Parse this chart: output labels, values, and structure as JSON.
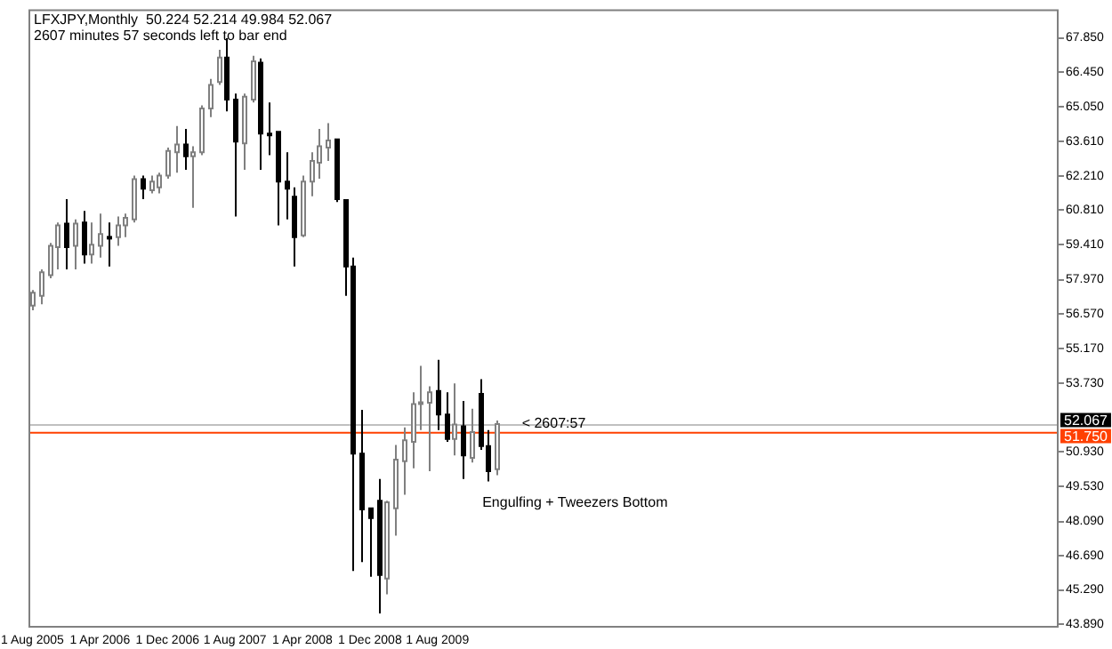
{
  "chart_data": {
    "type": "candlestick",
    "title": "LFXJPY,Monthly  50.224 52.214 49.984 52.067",
    "subtitle": "2607 minutes 57 seconds left to bar end",
    "x": [
      "2005-08",
      "2005-09",
      "2005-10",
      "2005-11",
      "2005-12",
      "2006-01",
      "2006-02",
      "2006-03",
      "2006-04",
      "2006-05",
      "2006-06",
      "2006-07",
      "2006-08",
      "2006-09",
      "2006-10",
      "2006-11",
      "2006-12",
      "2007-01",
      "2007-02",
      "2007-03",
      "2007-04",
      "2007-05",
      "2007-06",
      "2007-07",
      "2007-08",
      "2007-09",
      "2007-10",
      "2007-11",
      "2007-12",
      "2008-01",
      "2008-02",
      "2008-03",
      "2008-04",
      "2008-05",
      "2008-06",
      "2008-07",
      "2008-08",
      "2008-09",
      "2008-10",
      "2008-11",
      "2008-12",
      "2009-01",
      "2009-02",
      "2009-03",
      "2009-04",
      "2009-05",
      "2009-06",
      "2009-07",
      "2009-08",
      "2009-09",
      "2009-10",
      "2009-11",
      "2009-12",
      "2010-01",
      "2010-02",
      "2010-03"
    ],
    "ohlc": [
      [
        56.91,
        57.55,
        56.72,
        57.44
      ],
      [
        57.31,
        58.39,
        56.96,
        58.27
      ],
      [
        58.15,
        59.47,
        58.03,
        59.35
      ],
      [
        59.3,
        60.31,
        58.39,
        60.19
      ],
      [
        60.26,
        61.26,
        58.39,
        59.3
      ],
      [
        59.35,
        60.43,
        58.39,
        60.26
      ],
      [
        60.31,
        60.78,
        58.63,
        59.0
      ],
      [
        59.0,
        60.31,
        58.63,
        59.4
      ],
      [
        59.35,
        60.67,
        58.87,
        59.83
      ],
      [
        59.72,
        60.31,
        58.51,
        59.7
      ],
      [
        59.71,
        60.55,
        59.35,
        60.19
      ],
      [
        60.19,
        60.67,
        59.71,
        60.5
      ],
      [
        60.43,
        62.22,
        60.31,
        62.08
      ],
      [
        62.08,
        62.22,
        61.26,
        61.69
      ],
      [
        61.62,
        62.22,
        61.5,
        61.98
      ],
      [
        61.74,
        62.34,
        61.5,
        62.22
      ],
      [
        62.22,
        63.37,
        62.1,
        63.23
      ],
      [
        63.18,
        64.25,
        62.34,
        63.49
      ],
      [
        63.49,
        64.13,
        62.46,
        63.01
      ],
      [
        63.01,
        63.42,
        60.91,
        63.18
      ],
      [
        63.18,
        65.09,
        63.06,
        64.97
      ],
      [
        64.97,
        66.17,
        64.61,
        65.93
      ],
      [
        66.05,
        67.36,
        65.93,
        67.05
      ],
      [
        67.05,
        67.84,
        64.85,
        65.33
      ],
      [
        65.33,
        65.57,
        60.55,
        63.61
      ],
      [
        63.54,
        65.57,
        62.46,
        65.45
      ],
      [
        65.33,
        67.12,
        65.21,
        66.89
      ],
      [
        66.84,
        67.01,
        62.46,
        63.94
      ],
      [
        63.94,
        65.21,
        63.06,
        63.9
      ],
      [
        64.01,
        64.01,
        60.19,
        61.98
      ],
      [
        61.98,
        63.18,
        60.43,
        61.69
      ],
      [
        61.36,
        61.74,
        58.51,
        59.71
      ],
      [
        59.78,
        62.22,
        59.71,
        61.98
      ],
      [
        61.98,
        63.18,
        61.38,
        62.82
      ],
      [
        62.75,
        64.13,
        62.1,
        63.42
      ],
      [
        63.37,
        64.37,
        62.82,
        63.66
      ],
      [
        63.7,
        63.7,
        61.14,
        61.26
      ],
      [
        61.22,
        61.26,
        57.31,
        58.51
      ],
      [
        58.51,
        58.87,
        46.07,
        50.86
      ],
      [
        50.86,
        52.65,
        46.43,
        48.58
      ],
      [
        48.63,
        48.63,
        45.83,
        48.23
      ],
      [
        48.94,
        49.83,
        44.33,
        45.9
      ],
      [
        45.76,
        48.94,
        45.11,
        48.87
      ],
      [
        48.63,
        51.22,
        47.51,
        50.62
      ],
      [
        50.55,
        51.93,
        49.18,
        51.41
      ],
      [
        51.34,
        53.37,
        50.26,
        52.89
      ],
      [
        52.92,
        54.45,
        51.82,
        52.96
      ],
      [
        52.94,
        53.61,
        50.14,
        53.37
      ],
      [
        53.42,
        54.69,
        51.82,
        52.46
      ],
      [
        52.46,
        53.37,
        51.34,
        51.46
      ],
      [
        51.46,
        53.73,
        50.79,
        52.05
      ],
      [
        51.98,
        53.01,
        49.83,
        50.79
      ],
      [
        50.69,
        52.7,
        50.5,
        51.74
      ],
      [
        53.3,
        53.9,
        51.02,
        51.17
      ],
      [
        51.17,
        51.82,
        49.73,
        50.14
      ],
      [
        50.224,
        52.214,
        49.984,
        52.067
      ]
    ],
    "xlim": [
      "2005-07-17",
      "2015-09-19"
    ],
    "xticks": [
      {
        "value": "2005-08",
        "label": "1 Aug 2005"
      },
      {
        "value": "2006-04",
        "label": "1 Apr 2006"
      },
      {
        "value": "2006-12",
        "label": "1 Dec 2006"
      },
      {
        "value": "2007-08",
        "label": "1 Aug 2007"
      },
      {
        "value": "2008-04",
        "label": "1 Apr 2008"
      },
      {
        "value": "2008-12",
        "label": "1 Dec 2008"
      },
      {
        "value": "2009-08",
        "label": "1 Aug 2009"
      }
    ],
    "ylim": [
      43.75,
      69.02
    ],
    "yticks": [
      {
        "value": 67.85,
        "label": "67.850"
      },
      {
        "value": 66.45,
        "label": "66.450"
      },
      {
        "value": 65.05,
        "label": "65.050"
      },
      {
        "value": 63.61,
        "label": "63.610"
      },
      {
        "value": 62.21,
        "label": "62.210"
      },
      {
        "value": 60.81,
        "label": "60.810"
      },
      {
        "value": 59.41,
        "label": "59.410"
      },
      {
        "value": 57.97,
        "label": "57.970"
      },
      {
        "value": 56.57,
        "label": "56.570"
      },
      {
        "value": 55.17,
        "label": "55.170"
      },
      {
        "value": 53.73,
        "label": "53.730"
      },
      {
        "value": 50.93,
        "label": "50.930"
      },
      {
        "value": 49.53,
        "label": "49.530"
      },
      {
        "value": 48.09,
        "label": "48.090"
      },
      {
        "value": 46.69,
        "label": "46.690"
      },
      {
        "value": 45.29,
        "label": "45.290"
      },
      {
        "value": 43.89,
        "label": "43.890"
      }
    ],
    "ref_lines": [
      {
        "axis": "y",
        "value": 52.067,
        "label": "52.067",
        "color": "#c0c0c0"
      },
      {
        "axis": "y",
        "value": 51.75,
        "label": "51.750",
        "color": "#ff4000"
      }
    ],
    "annotations": [
      {
        "text": "< 2607:57",
        "x": "2010-06",
        "y": 52.067
      },
      "Engulfing + Tweezers Bottom"
    ],
    "grid": false,
    "legend": false
  }
}
